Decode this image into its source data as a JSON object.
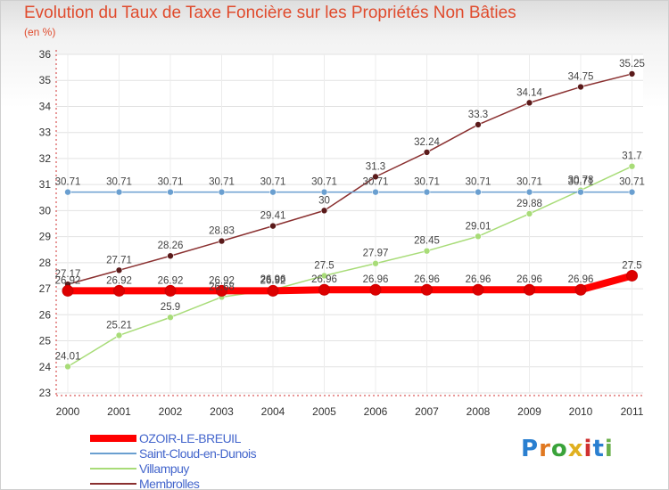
{
  "title": "Evolution du Taux de Taxe Foncière sur les Propriétés Non Bâties",
  "subtitle": "(en %)",
  "logo": "Proxiti",
  "chart_data": {
    "type": "line",
    "title": "Evolution du Taux de Taxe Foncière sur les Propriétés Non Bâties",
    "ylabel": "(en %)",
    "x": [
      "2000",
      "2001",
      "2002",
      "2003",
      "2004",
      "2005",
      "2006",
      "2007",
      "2008",
      "2009",
      "2010",
      "2011"
    ],
    "ylim": [
      23,
      36
    ],
    "yticks": [
      "23",
      "24",
      "25",
      "26",
      "27",
      "28",
      "29",
      "30",
      "31",
      "32",
      "33",
      "34",
      "35",
      "36"
    ],
    "grid": true,
    "legend_position": "bottom-left",
    "series": [
      {
        "name": "OZOIR-LE-BREUIL",
        "color": "#ff0000",
        "width": 8,
        "marker": 6,
        "values": [
          26.92,
          26.92,
          26.92,
          26.92,
          26.92,
          26.96,
          26.96,
          26.96,
          26.96,
          26.96,
          26.96,
          27.5
        ],
        "labels": [
          "26.92",
          "26.92",
          "26.92",
          "26.92",
          "26.92",
          "26.96",
          "26.96",
          "26.96",
          "26.96",
          "26.96",
          "26.96",
          "27.5"
        ]
      },
      {
        "name": "Saint-Cloud-en-Dunois",
        "color": "#6a9fd0",
        "width": 1.5,
        "marker": 3.5,
        "values": [
          30.71,
          30.71,
          30.71,
          30.71,
          30.71,
          30.71,
          30.71,
          30.71,
          30.71,
          30.71,
          30.71,
          30.71
        ],
        "labels": [
          "30.71",
          "30.71",
          "30.71",
          "30.71",
          "30.71",
          "30.71",
          "30.71",
          "30.71",
          "30.71",
          "30.71",
          "30.71",
          "30.71"
        ]
      },
      {
        "name": "Villampuy",
        "color": "#a8dc78",
        "width": 1.5,
        "marker": 3.5,
        "values": [
          24.01,
          25.21,
          25.9,
          26.68,
          26.96,
          27.5,
          27.97,
          28.45,
          29.01,
          29.88,
          30.78,
          31.7
        ],
        "labels": [
          "24.01",
          "25.21",
          "25.9",
          "26.68",
          "26.96",
          "27.5",
          "27.97",
          "28.45",
          "29.01",
          "29.88",
          "30.78",
          "31.7"
        ]
      },
      {
        "name": "Membrolles",
        "color": "#8a3030",
        "width": 1.5,
        "marker": 3.5,
        "values": [
          27.17,
          27.71,
          28.26,
          28.83,
          29.41,
          30,
          31.3,
          32.24,
          33.3,
          34.14,
          34.75,
          35.25
        ],
        "labels": [
          "27.17",
          "27.71",
          "28.26",
          "28.83",
          "29.41",
          "30",
          "31.3",
          "32.24",
          "33.3",
          "34.14",
          "34.75",
          "35.25"
        ]
      }
    ]
  }
}
